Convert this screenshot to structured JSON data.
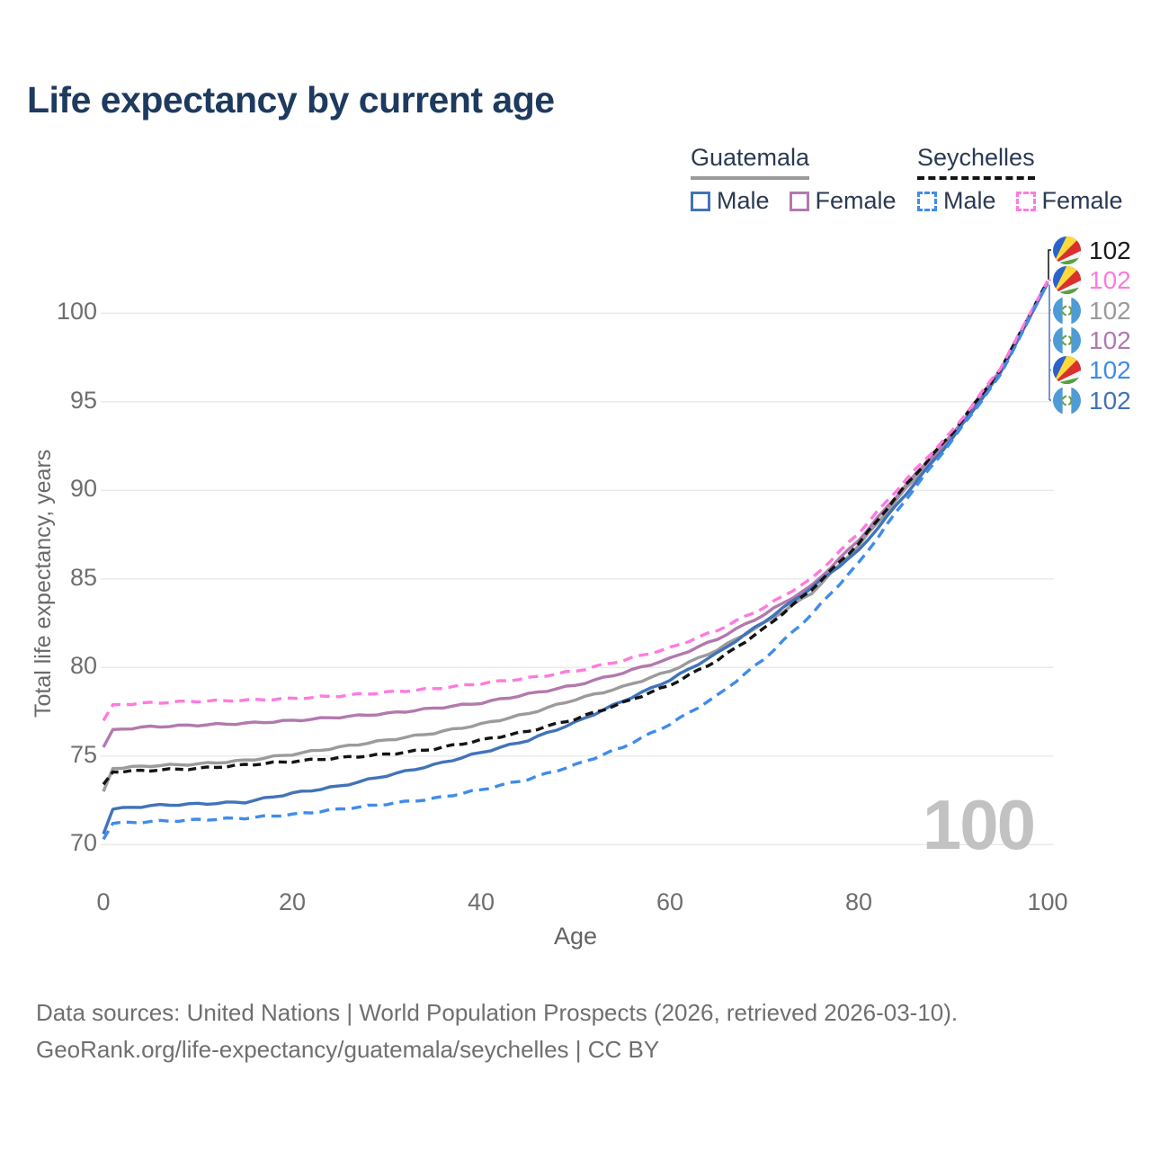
{
  "title": "Life expectancy by current age",
  "legend": {
    "groups": [
      {
        "country": "Guatemala",
        "line_style": "solid",
        "line_color": "#9b9b9b",
        "items": [
          {
            "label": "Male",
            "color": "#4173b9",
            "style": "solid"
          },
          {
            "label": "Female",
            "color": "#b279ae",
            "style": "solid"
          }
        ]
      },
      {
        "country": "Seychelles",
        "line_style": "dashed",
        "line_color": "#141414",
        "items": [
          {
            "label": "Male",
            "color": "#3f8ceb",
            "style": "dashed"
          },
          {
            "label": "Female",
            "color": "#ff7ade",
            "style": "dashed"
          }
        ]
      }
    ]
  },
  "age_watermark": "100",
  "chart_data": {
    "type": "line",
    "title": "Life expectancy by current age",
    "xlabel": "Age",
    "ylabel": "Total life expectancy, years",
    "xlim": [
      0,
      100
    ],
    "ylim": [
      69,
      103
    ],
    "x_ticks": [
      0,
      20,
      40,
      60,
      80,
      100
    ],
    "y_ticks": [
      70,
      75,
      80,
      85,
      90,
      95,
      100
    ],
    "grid": "horizontal-only",
    "ages": [
      0,
      1,
      5,
      10,
      15,
      20,
      25,
      30,
      35,
      40,
      45,
      50,
      55,
      60,
      65,
      70,
      75,
      80,
      85,
      90,
      95,
      100
    ],
    "series": [
      {
        "name": "Guatemala Female",
        "country": "Guatemala",
        "sex": "Female",
        "color": "#b279ae",
        "dash": "solid",
        "values": [
          75.5,
          76.5,
          76.65,
          76.75,
          76.85,
          77.0,
          77.2,
          77.4,
          77.7,
          78.0,
          78.5,
          79.0,
          79.7,
          80.5,
          81.6,
          83.0,
          84.6,
          87.2,
          90.3,
          93.2,
          96.8,
          101.8
        ]
      },
      {
        "name": "Guatemala Both sexes",
        "country": "Guatemala",
        "sex": "Both",
        "color": "#9b9b9b",
        "dash": "solid",
        "values": [
          73.0,
          74.3,
          74.45,
          74.55,
          74.75,
          75.1,
          75.5,
          75.9,
          76.3,
          76.8,
          77.4,
          78.2,
          78.9,
          79.8,
          81.0,
          82.5,
          84.2,
          86.9,
          90.1,
          93.1,
          96.7,
          101.7
        ]
      },
      {
        "name": "Guatemala Male",
        "country": "Guatemala",
        "sex": "Male",
        "color": "#4173b9",
        "dash": "solid",
        "values": [
          70.6,
          72.0,
          72.2,
          72.3,
          72.4,
          72.9,
          73.3,
          73.9,
          74.5,
          75.2,
          75.9,
          76.9,
          78.1,
          79.3,
          80.8,
          82.6,
          84.5,
          86.6,
          89.8,
          93.0,
          96.6,
          101.7
        ]
      },
      {
        "name": "Seychelles Female",
        "country": "Seychelles",
        "sex": "Female",
        "color": "#ff7ade",
        "dash": "dashed",
        "values": [
          77.0,
          77.9,
          78.0,
          78.1,
          78.15,
          78.25,
          78.4,
          78.6,
          78.8,
          79.1,
          79.4,
          79.8,
          80.4,
          81.1,
          82.1,
          83.4,
          85.0,
          87.6,
          90.6,
          93.4,
          96.9,
          101.8
        ]
      },
      {
        "name": "Seychelles Both sexes",
        "country": "Seychelles",
        "sex": "Both",
        "color": "#141414",
        "dash": "dashed",
        "values": [
          73.4,
          74.1,
          74.2,
          74.3,
          74.5,
          74.7,
          74.9,
          75.1,
          75.4,
          75.9,
          76.4,
          77.1,
          78.0,
          79.0,
          80.4,
          82.2,
          84.4,
          87.0,
          90.3,
          93.3,
          96.8,
          101.8
        ]
      },
      {
        "name": "Seychelles Male",
        "country": "Seychelles",
        "sex": "Male",
        "color": "#3f8ceb",
        "dash": "dashed",
        "values": [
          70.3,
          71.2,
          71.3,
          71.4,
          71.5,
          71.7,
          72.0,
          72.3,
          72.6,
          73.1,
          73.7,
          74.5,
          75.5,
          76.8,
          78.4,
          80.5,
          83.0,
          85.9,
          89.5,
          92.9,
          96.5,
          101.7
        ]
      }
    ]
  },
  "end_labels": [
    {
      "flag": "seychelles",
      "value": "102",
      "color": "#1a1a1a",
      "series": "Seychelles Both sexes"
    },
    {
      "flag": "seychelles",
      "value": "102",
      "color": "#ff7ade",
      "series": "Seychelles Female"
    },
    {
      "flag": "guatemala",
      "value": "102",
      "color": "#9b9b9b",
      "series": "Guatemala Both sexes"
    },
    {
      "flag": "guatemala",
      "value": "102",
      "color": "#b279ae",
      "series": "Guatemala Female"
    },
    {
      "flag": "seychelles",
      "value": "102",
      "color": "#3f8ceb",
      "series": "Seychelles Male"
    },
    {
      "flag": "guatemala",
      "value": "102",
      "color": "#4173b9",
      "series": "Guatemala Male"
    }
  ],
  "footer": {
    "line1": "Data sources: United Nations | World Population Prospects (2026, retrieved 2026-03-10).",
    "line2": "GeoRank.org/life-expectancy/guatemala/seychelles | CC BY"
  }
}
